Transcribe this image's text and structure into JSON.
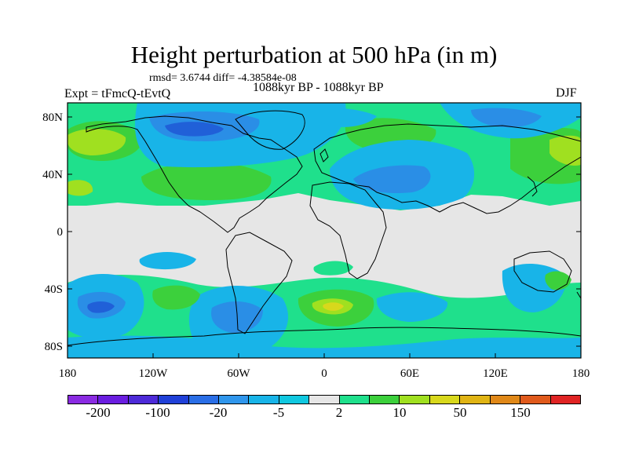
{
  "header": {
    "title": "Height perturbation at 500 hPa (in m)",
    "stats": "rmsd= 3.6744 diff= -4.38584e-08",
    "experiment": "Expt = tFmcQ-tEvtQ",
    "period": "1088kyr BP - 1088kyr BP",
    "season": "DJF"
  },
  "axes": {
    "lat_labels": [
      "80N",
      "40N",
      "0",
      "40S",
      "80S"
    ],
    "lon_labels": [
      "180",
      "120W",
      "60W",
      "0",
      "60E",
      "120E",
      "180"
    ]
  },
  "colorbar": {
    "colors": [
      "#8a2be2",
      "#6a1de0",
      "#4d2ad8",
      "#2040d8",
      "#2a6ee6",
      "#2f96ec",
      "#18b4e8",
      "#10c8e0",
      "#e6e6e6",
      "#1fe08c",
      "#3cd03c",
      "#a0e020",
      "#d8d81c",
      "#e0b414",
      "#e08818",
      "#e05a1c",
      "#e02424"
    ],
    "labels": [
      "-200",
      "-100",
      "-20",
      "-5",
      "2",
      "10",
      "50",
      "150"
    ]
  },
  "colors": {
    "neutral": "#e6e6e6",
    "light_blue": "#18b4e8",
    "mid_blue": "#2a8ee6",
    "dark_blue": "#2060d8",
    "teal_green": "#1fe08c",
    "green": "#3cd03c",
    "yellow_green": "#a0e020",
    "yellow": "#d8d81c",
    "coast": "#000000"
  }
}
